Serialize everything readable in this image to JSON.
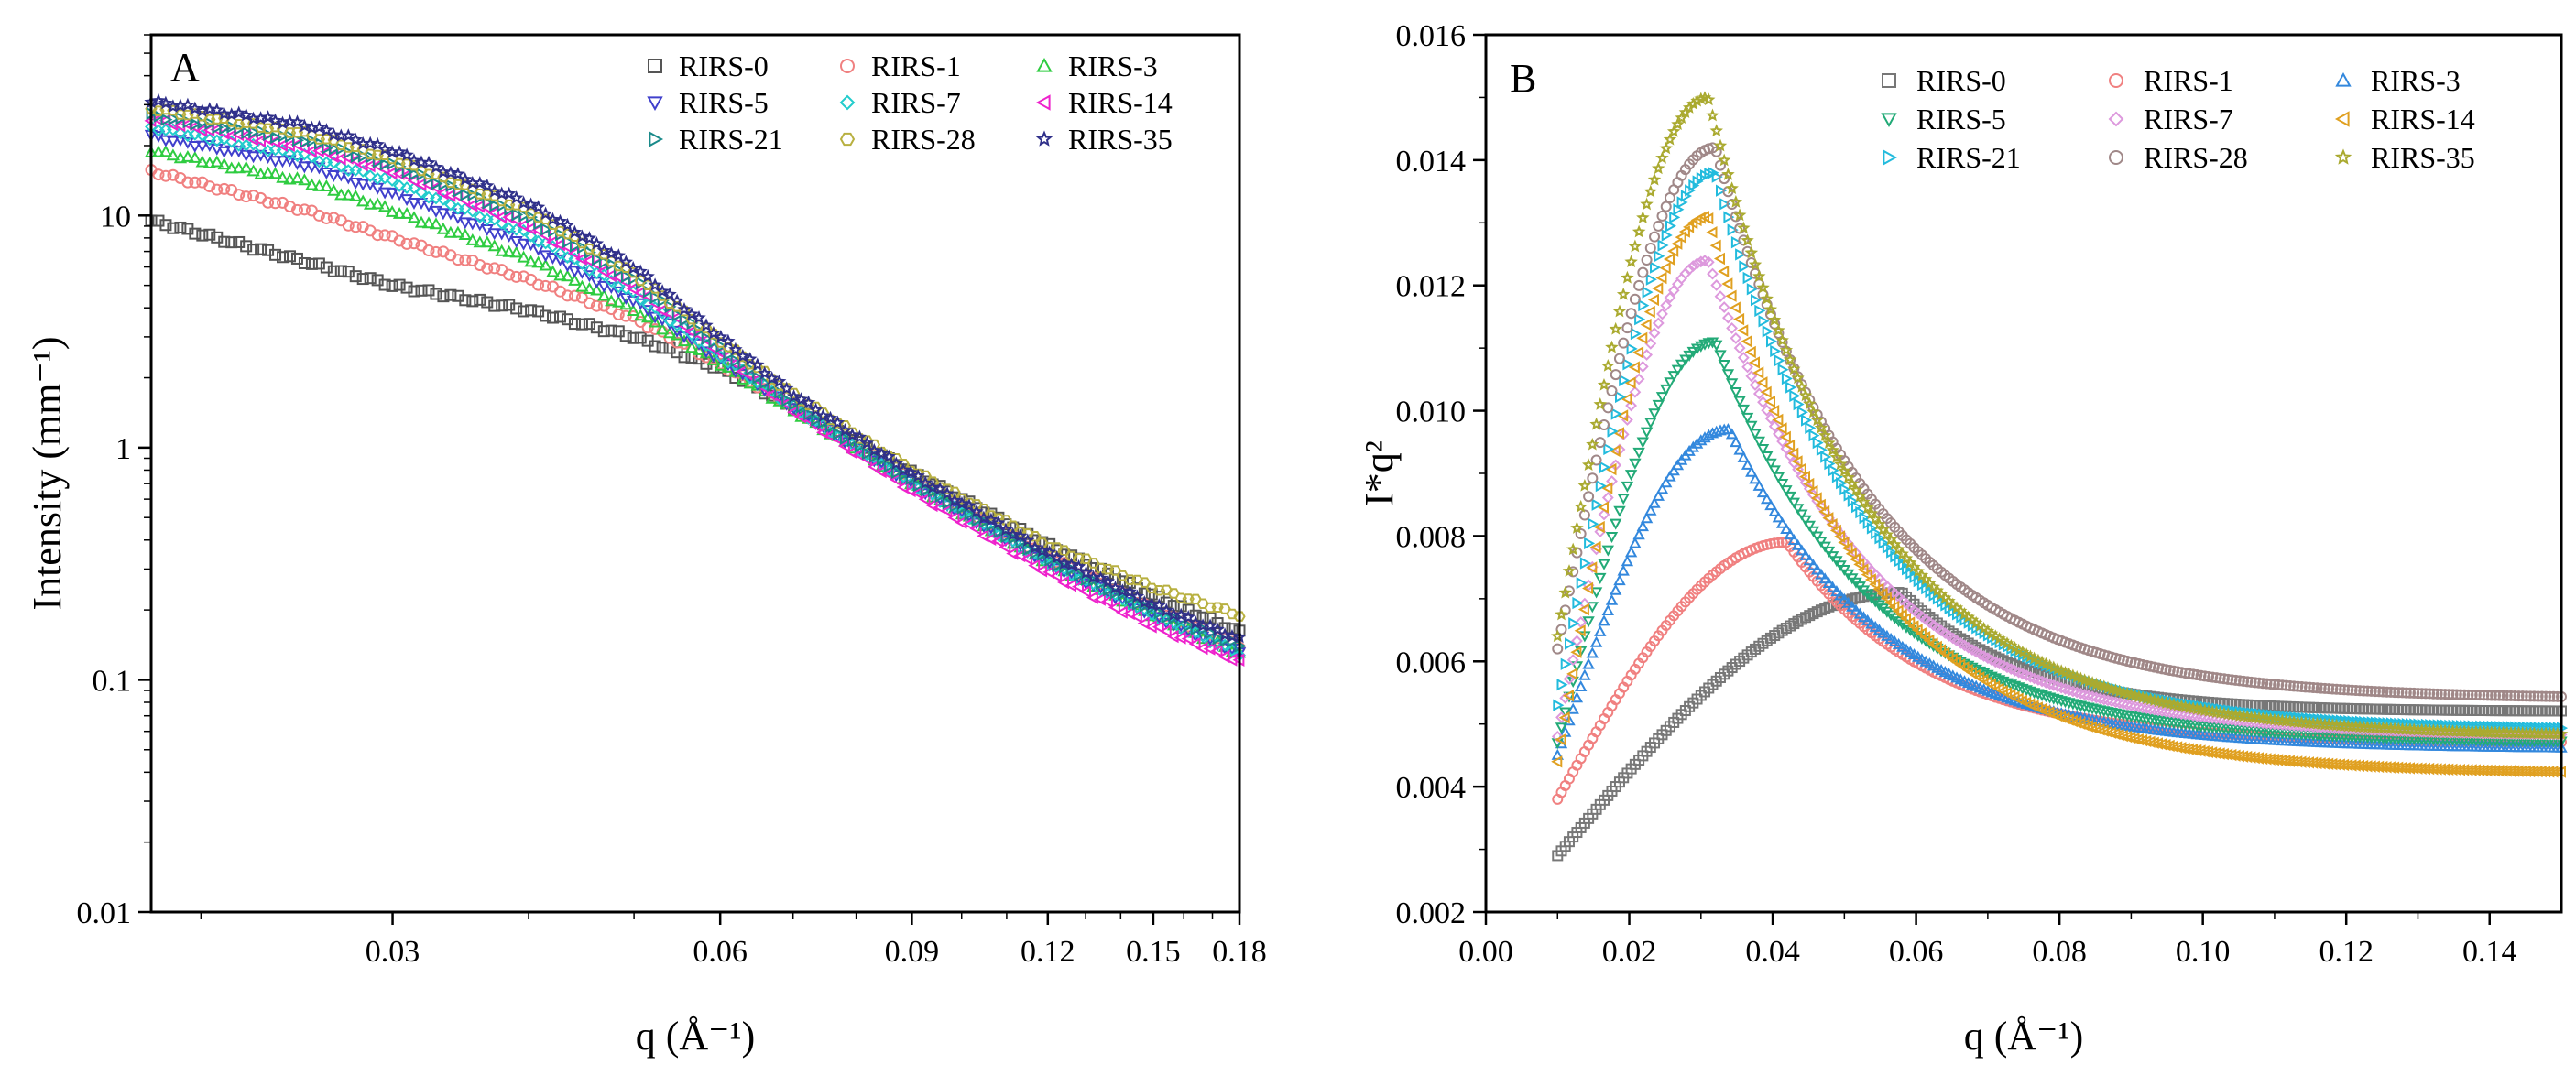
{
  "figure_id": "saxs-rirs",
  "chart_data": [
    {
      "panel": "A",
      "type": "scatter",
      "xscale": "log",
      "yscale": "log",
      "xlabel": "q (Å⁻¹)",
      "ylabel": "Intensity (mm⁻¹)",
      "xlim": [
        0.018,
        0.18
      ],
      "ylim": [
        0.01,
        60
      ],
      "xticks": [
        0.03,
        0.06,
        0.09,
        0.12,
        0.15,
        0.18
      ],
      "xtick_labels": [
        "0.03",
        "0.06",
        "0.09",
        "0.12",
        "0.15",
        "0.18"
      ],
      "yticks": [
        0.01,
        0.1,
        1,
        10
      ],
      "ytick_labels": [
        "0.01",
        "0.1",
        "1",
        "10"
      ],
      "legend_position": "top-right",
      "legend_columns": 3,
      "series": [
        {
          "name": "RIRS-0",
          "color": "#555555",
          "marker": "square",
          "q": [
            0.018,
            0.025,
            0.03,
            0.04,
            0.05,
            0.06,
            0.07,
            0.09,
            0.12,
            0.15,
            0.18
          ],
          "intensity": [
            9.5,
            6.3,
            5.0,
            3.9,
            3.0,
            2.2,
            1.5,
            0.78,
            0.38,
            0.23,
            0.16
          ]
        },
        {
          "name": "RIRS-1",
          "color": "#f08080",
          "marker": "circle",
          "q": [
            0.018,
            0.025,
            0.03,
            0.04,
            0.05,
            0.06,
            0.07,
            0.09,
            0.12,
            0.15,
            0.18
          ],
          "intensity": [
            15.5,
            10.5,
            8.0,
            5.3,
            3.6,
            2.3,
            1.5,
            0.72,
            0.34,
            0.2,
            0.14
          ]
        },
        {
          "name": "RIRS-3",
          "color": "#2ecc40",
          "marker": "triangle-up",
          "q": [
            0.018,
            0.025,
            0.03,
            0.04,
            0.05,
            0.06,
            0.07,
            0.09,
            0.12,
            0.15,
            0.18
          ],
          "intensity": [
            19,
            14,
            10.5,
            6.5,
            3.9,
            2.3,
            1.45,
            0.7,
            0.32,
            0.19,
            0.13
          ]
        },
        {
          "name": "RIRS-5",
          "color": "#4040cc",
          "marker": "triangle-down",
          "q": [
            0.018,
            0.025,
            0.03,
            0.04,
            0.05,
            0.06,
            0.07,
            0.09,
            0.12,
            0.15,
            0.18
          ],
          "intensity": [
            22,
            16.5,
            12.5,
            7.5,
            4.3,
            2.4,
            1.5,
            0.7,
            0.32,
            0.19,
            0.13
          ]
        },
        {
          "name": "RIRS-7",
          "color": "#22cccc",
          "marker": "diamond",
          "q": [
            0.018,
            0.025,
            0.03,
            0.04,
            0.05,
            0.06,
            0.07,
            0.09,
            0.12,
            0.15,
            0.18
          ],
          "intensity": [
            24,
            18,
            14,
            8.3,
            4.6,
            2.5,
            1.5,
            0.7,
            0.32,
            0.19,
            0.13
          ]
        },
        {
          "name": "RIRS-14",
          "color": "#ee22cc",
          "marker": "triangle-left",
          "q": [
            0.018,
            0.025,
            0.03,
            0.04,
            0.05,
            0.06,
            0.07,
            0.09,
            0.12,
            0.15,
            0.18
          ],
          "intensity": [
            26,
            19.5,
            15.5,
            9,
            4.9,
            2.6,
            1.45,
            0.65,
            0.29,
            0.17,
            0.12
          ]
        },
        {
          "name": "RIRS-21",
          "color": "#1a8a8a",
          "marker": "triangle-right",
          "q": [
            0.018,
            0.025,
            0.03,
            0.04,
            0.05,
            0.06,
            0.07,
            0.09,
            0.12,
            0.15,
            0.18
          ],
          "intensity": [
            27,
            21,
            16.5,
            9.8,
            5.3,
            2.7,
            1.55,
            0.72,
            0.33,
            0.2,
            0.14
          ]
        },
        {
          "name": "RIRS-28",
          "color": "#b8b040",
          "marker": "hexagon",
          "q": [
            0.018,
            0.025,
            0.03,
            0.04,
            0.05,
            0.06,
            0.07,
            0.09,
            0.12,
            0.15,
            0.18
          ],
          "intensity": [
            29,
            22.5,
            17.5,
            10.5,
            5.6,
            2.9,
            1.7,
            0.8,
            0.38,
            0.25,
            0.19
          ]
        },
        {
          "name": "RIRS-35",
          "color": "#30308a",
          "marker": "star",
          "q": [
            0.018,
            0.025,
            0.03,
            0.04,
            0.05,
            0.06,
            0.07,
            0.09,
            0.12,
            0.15,
            0.18
          ],
          "intensity": [
            31,
            24.5,
            19,
            11.3,
            6,
            3,
            1.7,
            0.77,
            0.35,
            0.21,
            0.15
          ]
        }
      ]
    },
    {
      "panel": "B",
      "type": "scatter",
      "xscale": "linear",
      "yscale": "linear",
      "xlabel": "q (Å⁻¹)",
      "ylabel": "I*q²",
      "xlim": [
        0,
        0.15
      ],
      "ylim": [
        0.002,
        0.016
      ],
      "xticks": [
        0.0,
        0.02,
        0.04,
        0.06,
        0.08,
        0.1,
        0.12,
        0.14
      ],
      "xtick_labels": [
        "0.00",
        "0.02",
        "0.04",
        "0.06",
        "0.08",
        "0.10",
        "0.12",
        "0.14"
      ],
      "yticks": [
        0.002,
        0.004,
        0.006,
        0.008,
        0.01,
        0.012,
        0.014,
        0.016
      ],
      "ytick_labels": [
        "0.002",
        "0.004",
        "0.006",
        "0.008",
        "0.010",
        "0.012",
        "0.014",
        "0.016"
      ],
      "legend_position": "top-right",
      "legend_columns": 3,
      "series": [
        {
          "name": "RIRS-0",
          "color": "#777777",
          "marker": "square",
          "q_start": 0.01,
          "y_start": 0.0029,
          "q_peak": 0.058,
          "y_peak": 0.0071,
          "y_end": 0.0052
        },
        {
          "name": "RIRS-1",
          "color": "#f08080",
          "marker": "circle",
          "q_start": 0.01,
          "y_start": 0.0038,
          "q_peak": 0.042,
          "y_peak": 0.0079,
          "y_end": 0.0047
        },
        {
          "name": "RIRS-3",
          "color": "#3388dd",
          "marker": "triangle-up",
          "q_start": 0.01,
          "y_start": 0.0045,
          "q_peak": 0.034,
          "y_peak": 0.0097,
          "y_end": 0.0046
        },
        {
          "name": "RIRS-5",
          "color": "#22aa77",
          "marker": "triangle-down",
          "q_start": 0.01,
          "y_start": 0.0047,
          "q_peak": 0.032,
          "y_peak": 0.0111,
          "y_end": 0.0047
        },
        {
          "name": "RIRS-7",
          "color": "#dd99dd",
          "marker": "diamond",
          "q_start": 0.01,
          "y_start": 0.0048,
          "q_peak": 0.031,
          "y_peak": 0.0124,
          "y_end": 0.0048
        },
        {
          "name": "RIRS-14",
          "color": "#e0a020",
          "marker": "triangle-left",
          "q_start": 0.01,
          "y_start": 0.0044,
          "q_peak": 0.031,
          "y_peak": 0.0131,
          "y_end": 0.0042
        },
        {
          "name": "RIRS-21",
          "color": "#22bbdd",
          "marker": "triangle-right",
          "q_start": 0.01,
          "y_start": 0.0053,
          "q_peak": 0.032,
          "y_peak": 0.0138,
          "y_end": 0.0049
        },
        {
          "name": "RIRS-28",
          "color": "#a08888",
          "marker": "circle",
          "q_start": 0.01,
          "y_start": 0.0062,
          "q_peak": 0.032,
          "y_peak": 0.0142,
          "y_end": 0.0054
        },
        {
          "name": "RIRS-35",
          "color": "#aaaa30",
          "marker": "star",
          "q_start": 0.01,
          "y_start": 0.0064,
          "q_peak": 0.031,
          "y_peak": 0.015,
          "y_end": 0.0048
        }
      ]
    }
  ]
}
